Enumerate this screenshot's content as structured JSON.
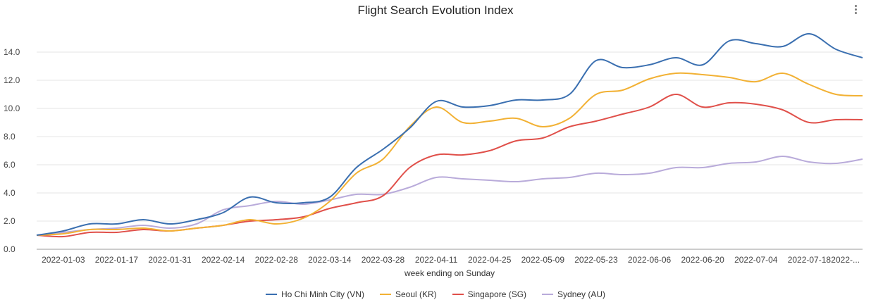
{
  "chart_data": {
    "type": "line",
    "title": "Flight Search Evolution Index",
    "xlabel": "week ending on Sunday",
    "ylabel": "",
    "ylim": [
      0,
      16
    ],
    "y_ticks": [
      0,
      2,
      4,
      6,
      8,
      10,
      12,
      14
    ],
    "y_tick_labels": [
      "0.0",
      "2.0",
      "4.0",
      "6.0",
      "8.0",
      "10.0",
      "12.0",
      "14.0"
    ],
    "x_tick_labels": [
      "2022-01-03",
      "2022-01-17",
      "2022-01-31",
      "2022-02-14",
      "2022-02-28",
      "2022-03-14",
      "2022-03-28",
      "2022-04-11",
      "2022-04-25",
      "2022-05-09",
      "2022-05-23",
      "2022-06-06",
      "2022-06-20",
      "2022-07-04",
      "2022-07-18",
      "2022-..."
    ],
    "x": [
      "2021-12-27",
      "2022-01-03",
      "2022-01-10",
      "2022-01-17",
      "2022-01-24",
      "2022-01-31",
      "2022-02-07",
      "2022-02-14",
      "2022-02-21",
      "2022-02-28",
      "2022-03-07",
      "2022-03-14",
      "2022-03-21",
      "2022-03-28",
      "2022-04-04",
      "2022-04-11",
      "2022-04-18",
      "2022-04-25",
      "2022-05-02",
      "2022-05-09",
      "2022-05-16",
      "2022-05-23",
      "2022-05-30",
      "2022-06-06",
      "2022-06-13",
      "2022-06-20",
      "2022-06-27",
      "2022-07-04",
      "2022-07-11",
      "2022-07-18",
      "2022-07-25",
      "2022-08-01"
    ],
    "series": [
      {
        "name": "Ho Chi Minh City (VN)",
        "color": "#3a6fb0",
        "values": [
          1.0,
          1.3,
          1.8,
          1.8,
          2.1,
          1.8,
          2.1,
          2.6,
          3.7,
          3.3,
          3.3,
          3.7,
          5.8,
          7.1,
          8.6,
          10.5,
          10.1,
          10.2,
          10.6,
          10.6,
          11.0,
          13.4,
          12.9,
          13.1,
          13.6,
          13.1,
          14.8,
          14.6,
          14.4,
          15.3,
          14.2,
          13.6
        ]
      },
      {
        "name": "Seoul (KR)",
        "color": "#f2b134",
        "values": [
          1.0,
          1.1,
          1.4,
          1.4,
          1.5,
          1.3,
          1.5,
          1.7,
          2.1,
          1.8,
          2.2,
          3.4,
          5.4,
          6.4,
          8.7,
          10.1,
          9.0,
          9.1,
          9.3,
          8.7,
          9.3,
          11.0,
          11.3,
          12.1,
          12.5,
          12.4,
          12.2,
          11.9,
          12.5,
          11.7,
          11.0,
          10.9
        ]
      },
      {
        "name": "Singapore (SG)",
        "color": "#e0504a",
        "values": [
          1.0,
          0.9,
          1.2,
          1.2,
          1.4,
          1.3,
          1.5,
          1.7,
          2.0,
          2.1,
          2.3,
          2.9,
          3.3,
          3.8,
          5.8,
          6.7,
          6.7,
          7.0,
          7.7,
          7.9,
          8.7,
          9.1,
          9.6,
          10.1,
          11.0,
          10.1,
          10.4,
          10.3,
          9.9,
          9.0,
          9.2,
          9.2
        ]
      },
      {
        "name": "Sydney (AU)",
        "color": "#b9abda",
        "values": [
          1.0,
          1.2,
          1.4,
          1.5,
          1.7,
          1.5,
          1.8,
          2.8,
          3.1,
          3.4,
          3.2,
          3.5,
          3.9,
          3.9,
          4.4,
          5.1,
          5.0,
          4.9,
          4.8,
          5.0,
          5.1,
          5.4,
          5.3,
          5.4,
          5.8,
          5.8,
          6.1,
          6.2,
          6.6,
          6.2,
          6.1,
          6.4
        ]
      }
    ],
    "grid": true,
    "legend_position": "bottom-center"
  }
}
